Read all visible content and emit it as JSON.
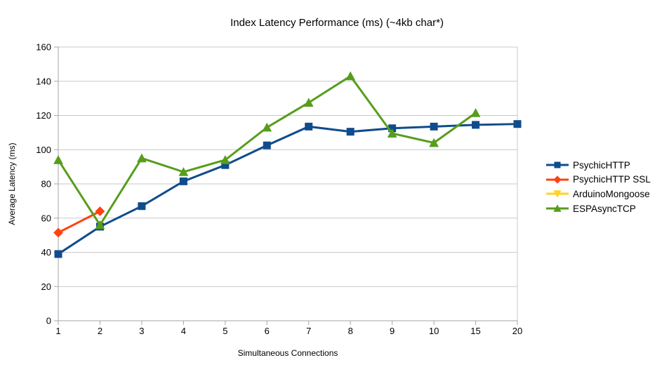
{
  "chart_data": {
    "type": "line",
    "title": "Index Latency Performance (ms) (~4kb char*)",
    "xlabel": "Simultaneous Connections",
    "ylabel": "Average Latency (ms)",
    "categories": [
      "1",
      "2",
      "3",
      "4",
      "5",
      "6",
      "7",
      "8",
      "9",
      "10",
      "15",
      "20"
    ],
    "ylim": [
      0,
      160
    ],
    "ytick_step": 20,
    "ytick_labels": [
      "0",
      "20",
      "40",
      "60",
      "80",
      "100",
      "120",
      "140",
      "160"
    ],
    "grid": true,
    "legend_position": "right",
    "series": [
      {
        "name": "PsychicHTTP",
        "color": "#0F4C8C",
        "marker": "square",
        "values": [
          39,
          55,
          67,
          81.5,
          91,
          102.5,
          113.5,
          110.5,
          112.5,
          113.5,
          114.5,
          115
        ]
      },
      {
        "name": "PsychicHTTP SSL",
        "color": "#FF420E",
        "marker": "diamond",
        "values": [
          51.5,
          64
        ]
      },
      {
        "name": "ArduinoMongoose",
        "color": "#FFD320",
        "marker": "triangle-down",
        "values": []
      },
      {
        "name": "ESPAsyncTCP",
        "color": "#579D1C",
        "marker": "triangle-up",
        "values": [
          94,
          56,
          95,
          87,
          94,
          113,
          127.5,
          143,
          109.5,
          104,
          121.5
        ]
      }
    ]
  }
}
